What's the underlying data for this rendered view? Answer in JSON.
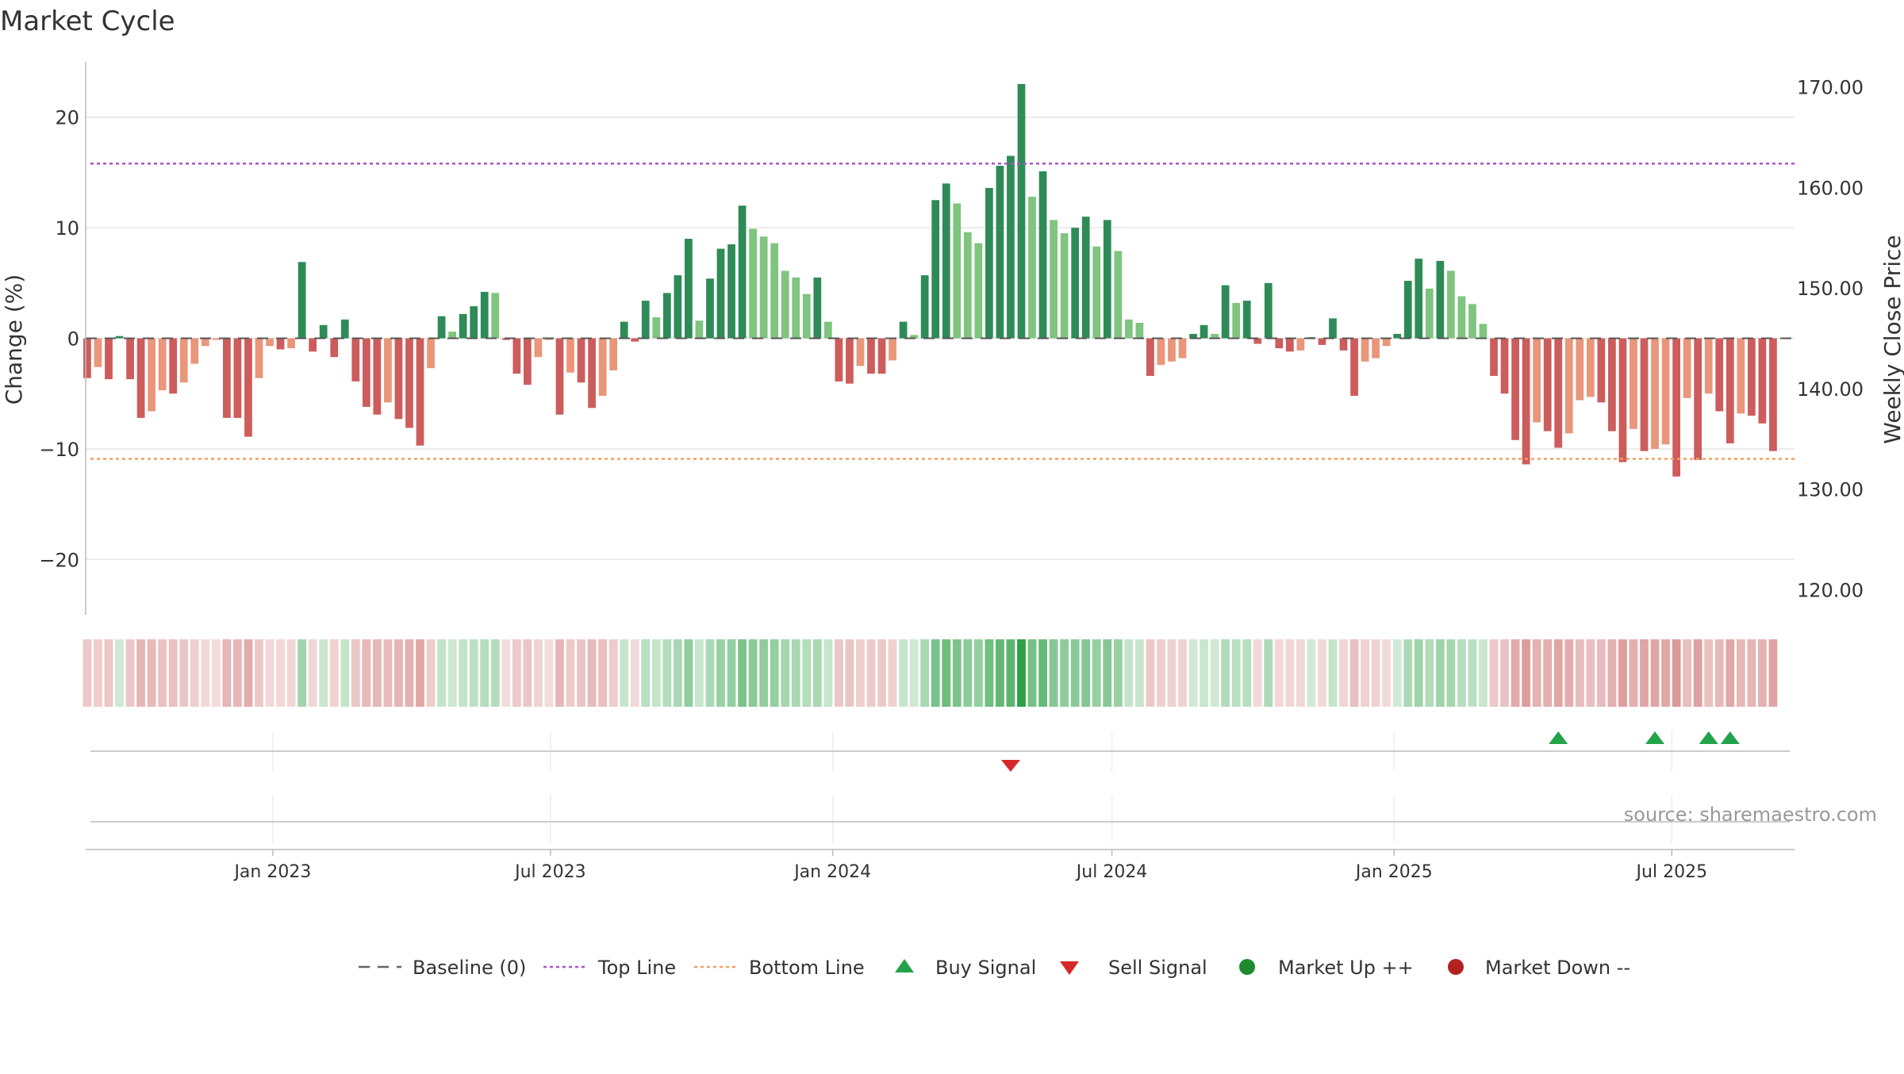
{
  "chart_data": {
    "type": "bar",
    "title": "Market Cycle",
    "ylabel": "Change (%)",
    "y2label": "Weekly Close Price",
    "ylim": [
      -25,
      25
    ],
    "y2lim": [
      117.5,
      172.5
    ],
    "yticks": [
      20,
      10,
      0,
      -10,
      -20
    ],
    "ytick_labels": [
      "20",
      "10",
      "0",
      "−10",
      "−20"
    ],
    "y2ticks": [
      170,
      160,
      150,
      140,
      130,
      120
    ],
    "y2tick_labels": [
      "170.00",
      "160.00",
      "150.00",
      "140.00",
      "130.00",
      "120.00"
    ],
    "xlim": [
      "2022-09-01",
      "2025-09-19"
    ],
    "xticks": [
      "2023-01-01",
      "2023-07-01",
      "2024-01-01",
      "2024-07-01",
      "2025-01-01",
      "2025-07-01"
    ],
    "xtick_labels": [
      "Jan 2023",
      "Jul 2023",
      "Jan 2024",
      "Jul 2024",
      "Jan 2025",
      "Jul 2025"
    ],
    "grid": true,
    "first_week": "2022-09-02",
    "top_line": 15.8,
    "bottom_line": -10.9,
    "weekly_change": [
      -3.6,
      -2.6,
      -3.7,
      0.2,
      -3.7,
      -7.2,
      -6.6,
      -4.7,
      -5.0,
      -4.0,
      -2.3,
      -0.7,
      -0.1,
      -7.2,
      -7.2,
      -8.9,
      -3.6,
      -0.7,
      -1.0,
      -0.9,
      6.9,
      -1.2,
      1.2,
      -1.7,
      1.7,
      -3.9,
      -6.2,
      -6.9,
      -5.8,
      -7.3,
      -8.1,
      -9.7,
      -2.7,
      2.0,
      0.6,
      2.2,
      2.9,
      4.2,
      4.1,
      -0.1,
      -3.2,
      -4.2,
      -1.7,
      -0.1,
      -6.9,
      -3.1,
      -4.0,
      -6.3,
      -5.2,
      -2.9,
      1.5,
      -0.3,
      3.4,
      1.9,
      4.1,
      5.7,
      9.0,
      1.6,
      5.4,
      8.1,
      8.5,
      12.0,
      9.9,
      9.2,
      8.6,
      6.1,
      5.5,
      4.0,
      5.5,
      1.5,
      -3.9,
      -4.1,
      -2.5,
      -3.2,
      -3.2,
      -2.0,
      1.5,
      0.3,
      5.7,
      12.5,
      14.0,
      12.2,
      9.6,
      8.6,
      13.6,
      15.6,
      16.5,
      23.0,
      12.8,
      15.1,
      10.7,
      9.5,
      10.0,
      11.0,
      8.3,
      10.7,
      7.9,
      1.7,
      1.4,
      -3.4,
      -2.4,
      -2.1,
      -1.8,
      0.4,
      1.2,
      0.4,
      4.8,
      3.2,
      3.4,
      -0.5,
      5.0,
      -0.9,
      -1.2,
      -1.1,
      0.1,
      -0.6,
      1.8,
      -1.1,
      -5.2,
      -2.1,
      -1.8,
      -0.7,
      0.4,
      5.2,
      7.2,
      4.5,
      7.0,
      6.1,
      3.8,
      3.1,
      1.3,
      -3.4,
      -5.0,
      -9.2,
      -11.4,
      -7.6,
      -8.4,
      -9.9,
      -8.6,
      -5.6,
      -5.3,
      -5.8,
      -8.4,
      -11.2,
      -8.2,
      -10.2,
      -10.0,
      -9.6,
      -12.5,
      -5.4,
      -11.0,
      -5.0,
      -6.6,
      -9.5,
      -6.8,
      -7.0,
      -7.7,
      -10.2
    ],
    "signals": {
      "buy_weeks": [
        137,
        146,
        151,
        153
      ],
      "sell_weeks": [
        86
      ]
    },
    "colors": {
      "strong_up": "#2e8b57",
      "up": "#7fc47f",
      "strong_down": "#cd5c5c",
      "down": "#e9967a",
      "top_line": "#a855c8",
      "bottom_line": "#f0a060",
      "buy": "#22a34a",
      "sell": "#d62828",
      "market_up": "#1e8c2e",
      "market_down": "#b22222"
    },
    "legend": {
      "position": "bottom",
      "items": [
        {
          "label": "Baseline (0)",
          "marker": "dash",
          "color": "#666666"
        },
        {
          "label": "Top Line",
          "marker": "dotted",
          "color": "#a855c8"
        },
        {
          "label": "Bottom Line",
          "marker": "dotted",
          "color": "#f0a060"
        },
        {
          "label": "Buy Signal",
          "marker": "triangle-up",
          "color": "#22a34a"
        },
        {
          "label": "Sell Signal",
          "marker": "triangle-down",
          "color": "#d62828"
        },
        {
          "label": "Market Up ++",
          "marker": "circle",
          "color": "#1e8c2e"
        },
        {
          "label": "Market Down --",
          "marker": "circle",
          "color": "#b22222"
        }
      ]
    },
    "source": "source: sharemaestro.com"
  }
}
